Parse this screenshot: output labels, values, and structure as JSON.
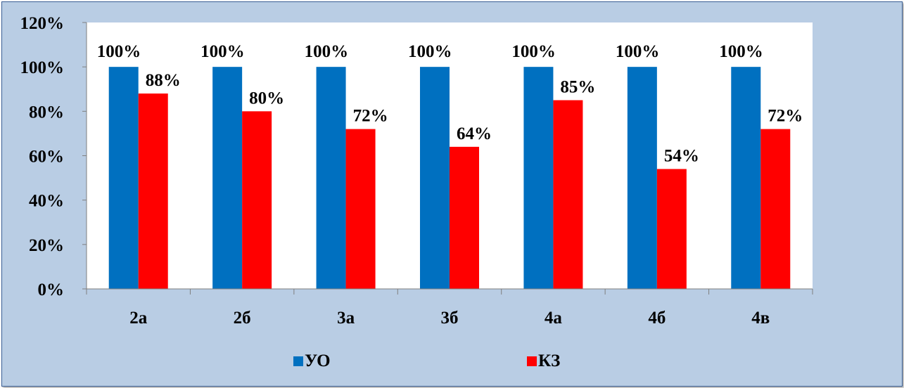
{
  "chart_data": {
    "type": "bar",
    "categories": [
      "2а",
      "2б",
      "3а",
      "3б",
      "4а",
      "4б",
      "4в"
    ],
    "series": [
      {
        "name": "УО",
        "color": "#0070c0",
        "values": [
          100,
          100,
          100,
          100,
          100,
          100,
          100
        ],
        "labels": [
          "100%",
          "100%",
          "100%",
          "100%",
          "100%",
          "100%",
          "100%"
        ]
      },
      {
        "name": "КЗ",
        "color": "#ff0000",
        "values": [
          88,
          80,
          72,
          64,
          85,
          54,
          72
        ],
        "labels": [
          "88%",
          "80%",
          "72%",
          "64%",
          "85%",
          "54%",
          "72%"
        ]
      }
    ],
    "ylim": [
      0,
      120
    ],
    "yticks": [
      "0%",
      "20%",
      "40%",
      "60%",
      "80%",
      "100%",
      "120%"
    ],
    "title": "",
    "xlabel": "",
    "ylabel": "",
    "grid": false,
    "legend": "bottom",
    "plot_background": "#ffffff",
    "frame_background": "#b9cde4"
  }
}
